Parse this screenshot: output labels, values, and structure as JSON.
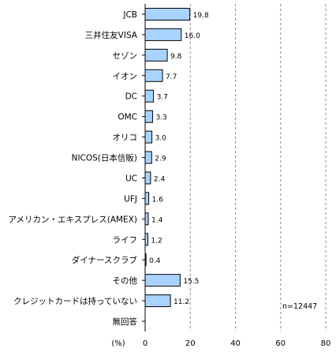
{
  "chart_data": {
    "type": "bar",
    "orientation": "horizontal",
    "categories": [
      "JCB",
      "三井住友VISA",
      "セゾン",
      "イオン",
      "DC",
      "OMC",
      "オリコ",
      "NICOS(日本信販)",
      "UC",
      "UFJ",
      "アメリカン・エキスプレス(AMEX)",
      "ライフ",
      "ダイナースクラブ",
      "その他",
      "クレジットカードは持っていない",
      "無回答"
    ],
    "values": [
      19.8,
      16.0,
      9.8,
      7.7,
      3.7,
      3.3,
      3.0,
      2.9,
      2.4,
      1.6,
      1.4,
      1.2,
      0.4,
      15.5,
      11.2,
      null
    ],
    "value_labels": [
      "19.8",
      "16.0",
      "9.8",
      "7.7",
      "3.7",
      "3.3",
      "3.0",
      "2.9",
      "2.4",
      "1.6",
      "1.4",
      "1.2",
      "0.4",
      "15.5",
      "11.2",
      ""
    ],
    "xlim": [
      0,
      80
    ],
    "xticks": [
      "0",
      "20",
      "40",
      "60",
      "80"
    ],
    "xunit": "(%)",
    "note": "n=12447",
    "grid": "vertical dashed",
    "colors": {
      "bar_fill": "#a9d3ff",
      "bar_stroke": "#000000",
      "grid": "#888888"
    }
  }
}
